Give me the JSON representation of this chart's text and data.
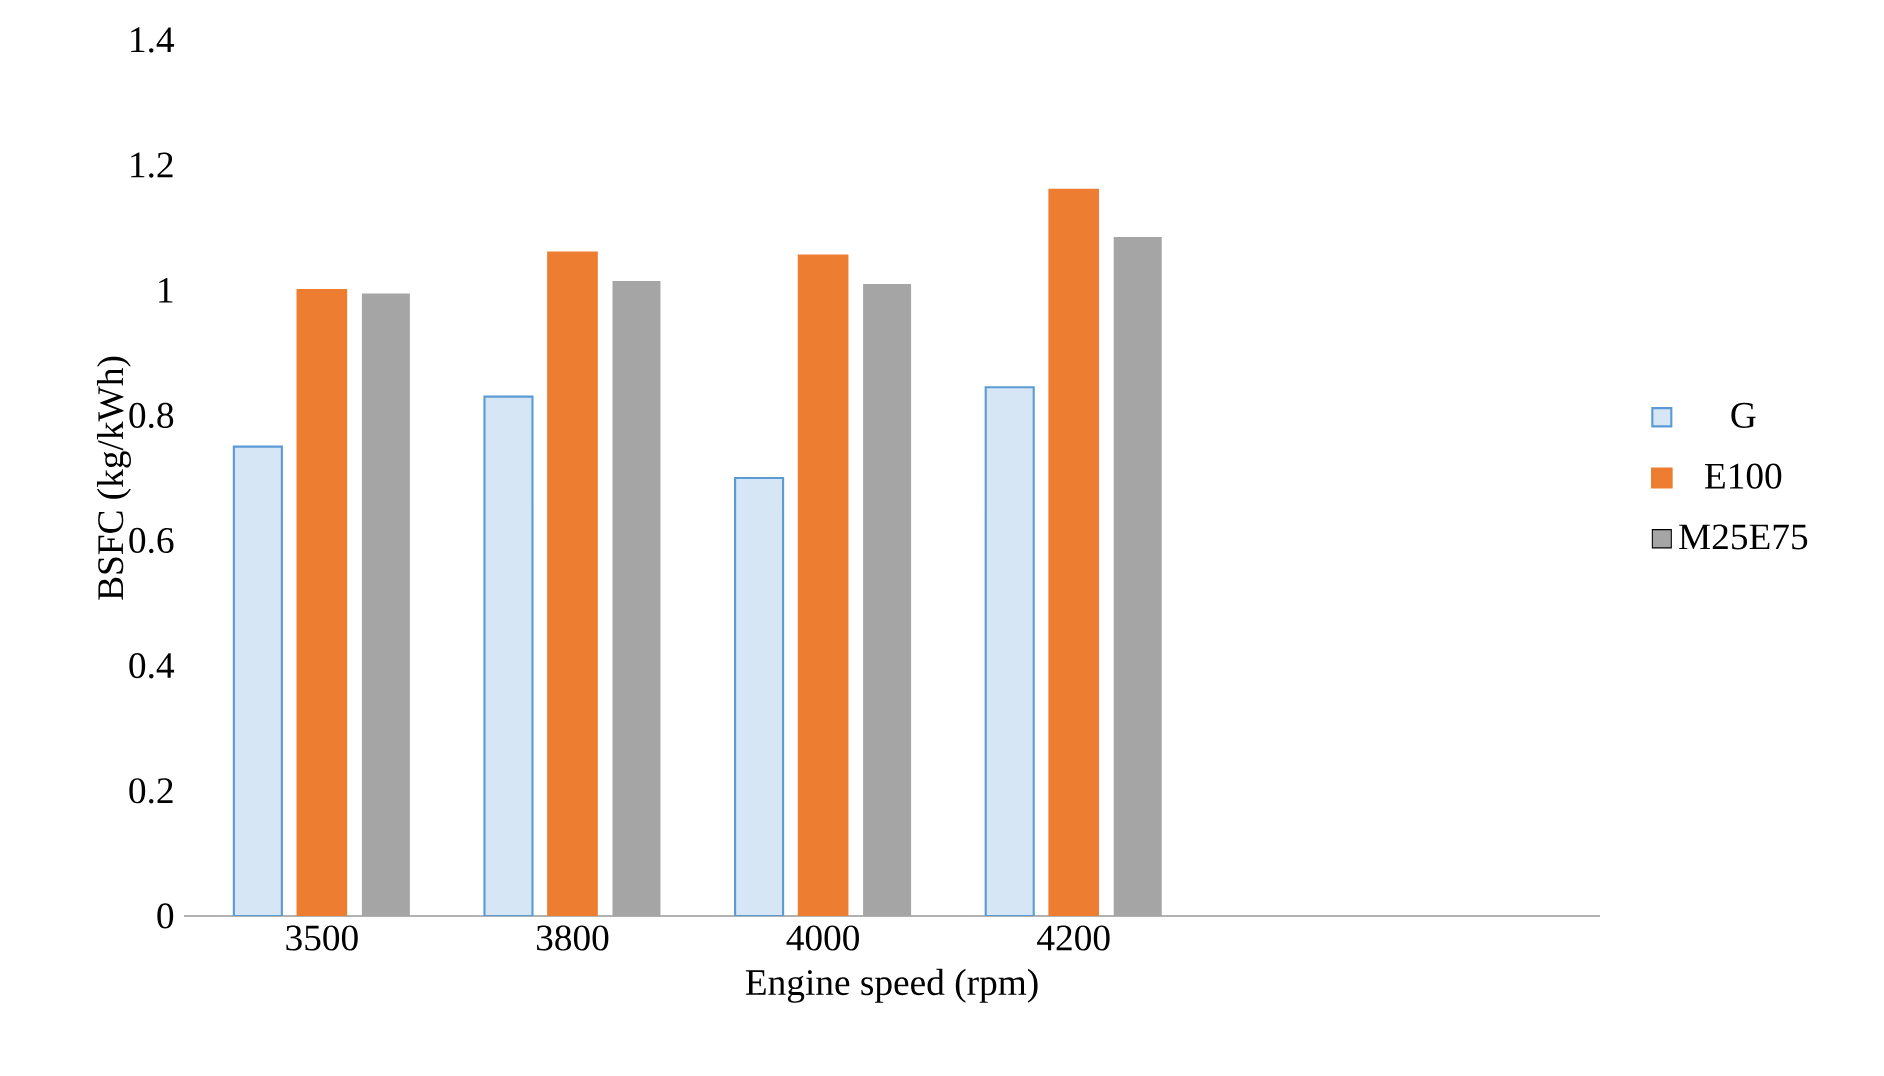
{
  "chart_data": {
    "type": "bar",
    "xlabel": "Engine speed (rpm)",
    "ylabel": "BSFC (kg/kWh)",
    "categories": [
      "3500",
      "3800",
      "4000",
      "4200"
    ],
    "series": [
      {
        "name": "G",
        "color": "#d6e6f5",
        "values": [
          0.75,
          0.83,
          0.7,
          0.845
        ]
      },
      {
        "name": "E100",
        "color": "#ed7d31",
        "values": [
          1.0,
          1.06,
          1.055,
          1.16
        ]
      },
      {
        "name": "M25E75",
        "color": "#a5a5a5",
        "values": [
          0.995,
          1.015,
          1.01,
          1.085
        ]
      }
    ],
    "ylim": [
      0,
      1.4
    ],
    "yticks": [
      0,
      0.2,
      0.4,
      0.6,
      0.8,
      1,
      1.2,
      1.4
    ],
    "grid": false,
    "legend": "right"
  }
}
